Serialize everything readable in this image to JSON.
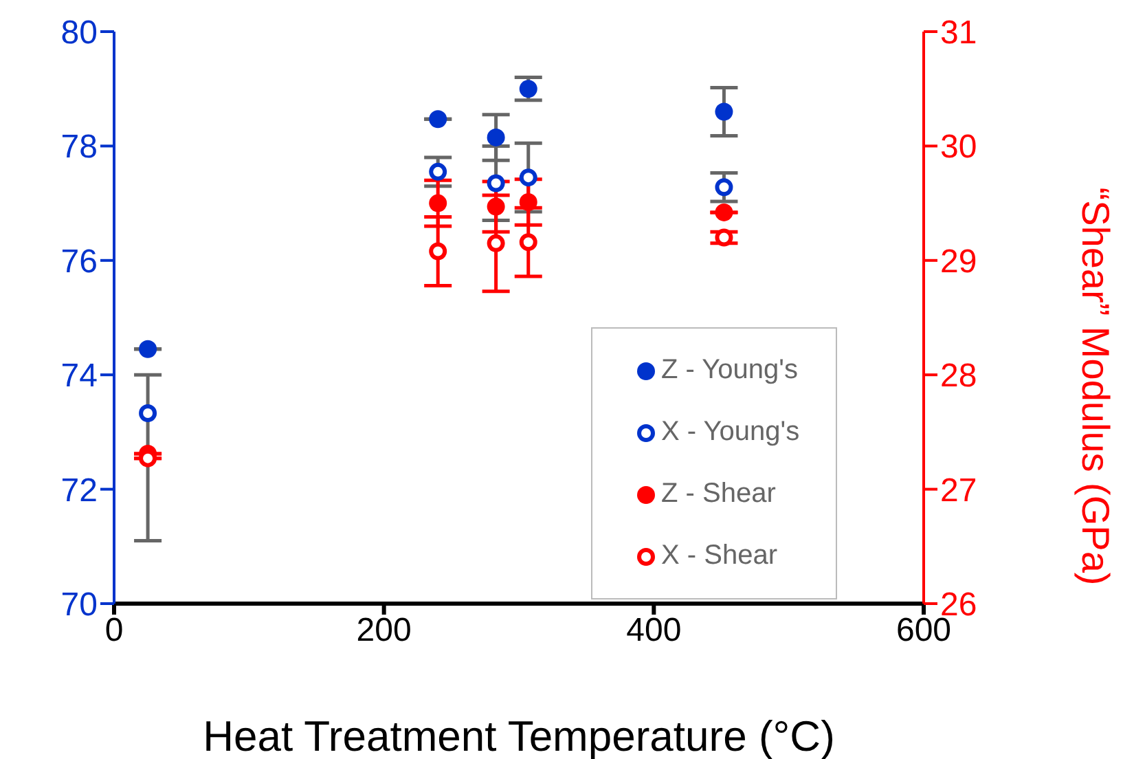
{
  "chart_data": {
    "type": "scatter",
    "xlabel": "Heat Treatment Temperature (°C)",
    "y2label": "“Shear” Modulus (GPa)",
    "xlim": [
      0,
      600
    ],
    "xticks": [
      0,
      200,
      400,
      600
    ],
    "ylim": [
      70,
      80
    ],
    "yticks": [
      70,
      72,
      74,
      76,
      78,
      80
    ],
    "y2lim": [
      26,
      31
    ],
    "y2ticks": [
      26,
      27,
      28,
      29,
      30,
      31
    ],
    "legend": "bottom right",
    "marker": "circle",
    "series": [
      {
        "name": "Z - Young's",
        "color": "#0033cc",
        "x": [
          25,
          240,
          283,
          307,
          452
        ],
        "values": [
          74.45,
          78.47,
          78.15,
          79.0,
          78.6
        ],
        "errors": [
          null,
          null,
          0.4,
          0.2,
          0.42
        ]
      },
      {
        "name": "X - Young's",
        "color": "#0033cc",
        "marker": "open-circle",
        "x": [
          25,
          240,
          283,
          307,
          452
        ],
        "values": [
          73.33,
          77.55,
          77.35,
          77.45,
          77.28
        ],
        "errors": [
          [
            71.1,
            74.0
          ],
          0.25,
          0.65,
          0.6,
          0.25
        ]
      },
      {
        "name": "Z - Shear",
        "color": "#ff0000",
        "axis": "y2",
        "x": [
          25,
          240,
          283,
          307,
          452
        ],
        "values": [
          27.31,
          29.5,
          29.47,
          29.51,
          29.42
        ],
        "errors": [
          null,
          0.2,
          0.22,
          0.2,
          null
        ]
      },
      {
        "name": "X - Shear",
        "color": "#ff0000",
        "marker": "open-circle",
        "axis": "y2",
        "x": [
          25,
          240,
          283,
          307,
          452
        ],
        "values": [
          27.27,
          29.08,
          29.15,
          29.16,
          29.2
        ],
        "errors": [
          null,
          0.3,
          0.42,
          0.3,
          0.05
        ]
      }
    ]
  }
}
